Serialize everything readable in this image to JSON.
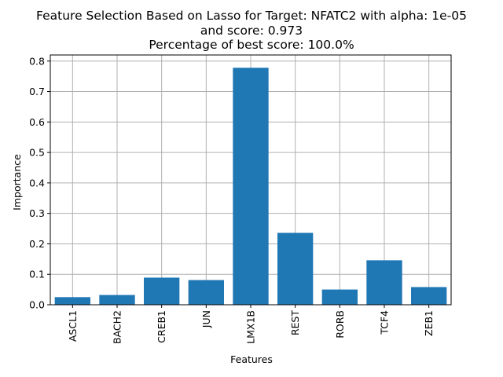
{
  "chart_data": {
    "type": "bar",
    "title_lines": [
      "Feature Selection Based on Lasso for Target: NFATC2 with alpha: 1e-05",
      "and score: 0.973",
      "Percentage of best score: 100.0%"
    ],
    "xlabel": "Features",
    "ylabel": "Importance",
    "categories": [
      "ASCL1",
      "BACH2",
      "CREB1",
      "JUN",
      "LMX1B",
      "REST",
      "RORB",
      "TCF4",
      "ZEB1"
    ],
    "values": [
      0.025,
      0.032,
      0.089,
      0.081,
      0.778,
      0.236,
      0.05,
      0.146,
      0.058
    ],
    "ylim": [
      0,
      0.82
    ],
    "yticks": [
      "0.0",
      "0.1",
      "0.2",
      "0.3",
      "0.4",
      "0.5",
      "0.6",
      "0.7",
      "0.8"
    ],
    "grid": true,
    "colors": {
      "bar": "#1f77b4",
      "grid": "#b0b0b0",
      "axis": "#000000"
    }
  }
}
